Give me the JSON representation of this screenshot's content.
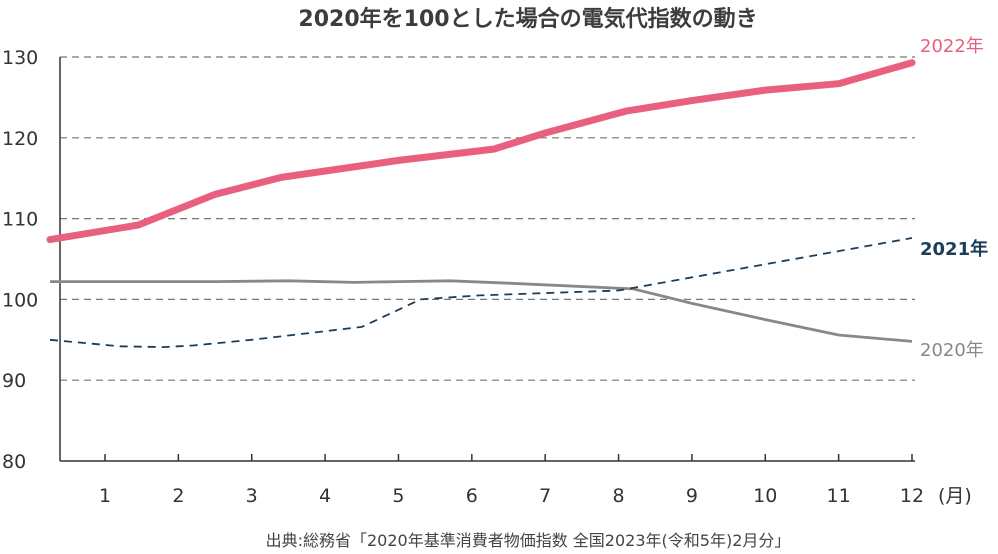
{
  "chart_data": {
    "type": "line",
    "title": "2020年を100とした場合の電気代指数の動き",
    "x_unit": "(月)",
    "categories": [
      "1",
      "2",
      "3",
      "4",
      "5",
      "6",
      "7",
      "8",
      "9",
      "10",
      "11",
      "12"
    ],
    "x_range": [
      0.25,
      12.3
    ],
    "ylim": [
      80,
      130
    ],
    "yticks": [
      "80",
      "90",
      "100",
      "110",
      "120",
      "130"
    ],
    "grid": "horizontal dashed",
    "series": [
      {
        "name": "2022年",
        "color": "#e8607e",
        "style": "solid-thick",
        "points": [
          [
            0.25,
            107.4
          ],
          [
            1.45,
            109.2
          ],
          [
            2.5,
            113.0
          ],
          [
            3.4,
            115.1
          ],
          [
            5.0,
            117.2
          ],
          [
            6.3,
            118.6
          ],
          [
            7.0,
            120.6
          ],
          [
            8.1,
            123.3
          ],
          [
            9.0,
            124.6
          ],
          [
            10.0,
            125.9
          ],
          [
            11.0,
            126.7
          ],
          [
            12.0,
            129.3
          ]
        ]
      },
      {
        "name": "2021年",
        "color": "#1c3d5a",
        "style": "dashed",
        "points": [
          [
            0.25,
            95.0
          ],
          [
            1.2,
            94.2
          ],
          [
            1.8,
            94.1
          ],
          [
            2.2,
            94.3
          ],
          [
            3.0,
            95.0
          ],
          [
            4.5,
            96.6
          ],
          [
            5.3,
            100.0
          ],
          [
            6.1,
            100.5
          ],
          [
            8.0,
            101.1
          ],
          [
            12.0,
            107.6
          ]
        ]
      },
      {
        "name": "2020年",
        "color": "#888888",
        "style": "solid",
        "points": [
          [
            0.25,
            102.2
          ],
          [
            2.5,
            102.2
          ],
          [
            3.5,
            102.3
          ],
          [
            4.4,
            102.1
          ],
          [
            5.0,
            102.2
          ],
          [
            5.7,
            102.3
          ],
          [
            6.5,
            102.0
          ],
          [
            8.2,
            101.3
          ],
          [
            9.0,
            99.5
          ],
          [
            10.0,
            97.5
          ],
          [
            11.0,
            95.6
          ],
          [
            12.0,
            94.8
          ]
        ]
      }
    ],
    "source": "出典:総務省「2020年基準消費者物価指数 全国2023年(令和5年)2月分」"
  }
}
